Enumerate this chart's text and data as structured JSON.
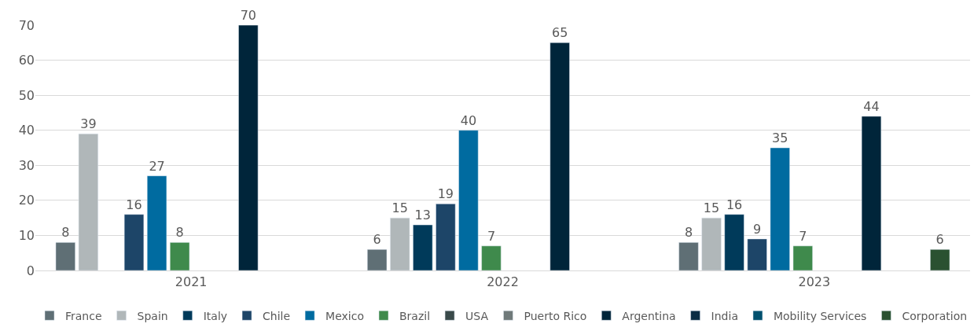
{
  "chart_data": {
    "type": "bar",
    "categories": [
      "2021",
      "2022",
      "2023"
    ],
    "series": [
      {
        "name": "France",
        "color": "#5f6f75",
        "values": [
          8,
          6,
          8
        ]
      },
      {
        "name": "Spain",
        "color": "#b0b7b9",
        "values": [
          39,
          15,
          15
        ]
      },
      {
        "name": "Italy",
        "color": "#003a5a",
        "values": [
          null,
          13,
          16
        ]
      },
      {
        "name": "Chile",
        "color": "#1d4568",
        "values": [
          16,
          19,
          9
        ]
      },
      {
        "name": "Mexico",
        "color": "#006ba0",
        "values": [
          27,
          40,
          35
        ]
      },
      {
        "name": "Brazil",
        "color": "#3f8a4c",
        "values": [
          8,
          7,
          7
        ]
      },
      {
        "name": "USA",
        "color": "#3a4a4a",
        "values": [
          null,
          null,
          null
        ]
      },
      {
        "name": "Puerto Rico",
        "color": "#707a7a",
        "values": [
          null,
          null,
          null
        ]
      },
      {
        "name": "Argentina",
        "color": "#00253a",
        "values": [
          70,
          65,
          44
        ]
      },
      {
        "name": "India",
        "color": "#0a2d45",
        "values": [
          null,
          null,
          null
        ]
      },
      {
        "name": "Mobility Services",
        "color": "#00506e",
        "values": [
          null,
          null,
          null
        ]
      },
      {
        "name": "Corporation",
        "color": "#2a5131",
        "values": [
          null,
          null,
          6
        ]
      }
    ],
    "ylim": [
      0,
      70
    ],
    "yticks": [
      0,
      10,
      20,
      30,
      40,
      50,
      60,
      70
    ],
    "grid": "y",
    "legend": "bottom",
    "data_labels": true
  }
}
